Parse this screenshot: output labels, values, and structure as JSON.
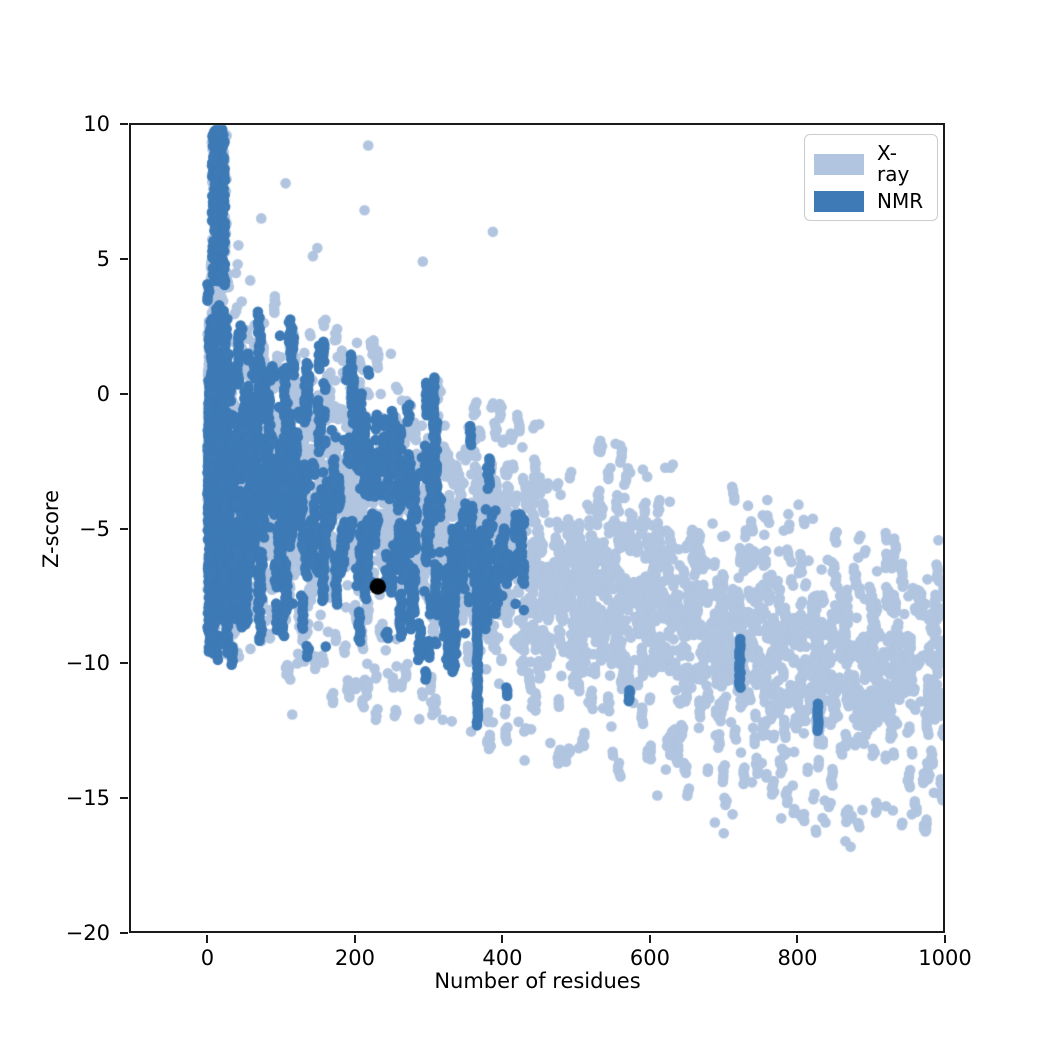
{
  "figure": {
    "background": "#ffffff"
  },
  "chart_data": {
    "type": "scatter",
    "title": "",
    "xlabel": "Number of residues",
    "ylabel": "Z-score",
    "xlim": [
      -105,
      1000
    ],
    "ylim": [
      -20,
      10
    ],
    "grid": false,
    "x_ticks": {
      "values": [
        0,
        200,
        400,
        600,
        800,
        1000
      ],
      "labels": [
        "0",
        "200",
        "400",
        "600",
        "800",
        "1000"
      ]
    },
    "y_ticks": {
      "values": [
        10,
        5,
        0,
        -5,
        -10,
        -15,
        -20
      ],
      "labels": [
        "10",
        "5",
        "0",
        "−5",
        "−10",
        "−15",
        "−20"
      ]
    },
    "legend": {
      "position": "upper right",
      "entries": [
        {
          "label": "X-ray",
          "color": "#b1c5e0"
        },
        {
          "label": "NMR",
          "color": "#3d7ab6"
        }
      ]
    },
    "highlight_point": {
      "x": 231,
      "y": -7.15,
      "color": "#000000",
      "radius_px": 8.2
    },
    "series": [
      {
        "name": "X-ray",
        "color": "#b1c5e0",
        "marker_radius_px": 5.3,
        "x_range": [
          2,
          1000
        ],
        "x_skew": 1.45,
        "n_points": 6800,
        "upper_envelope": [
          [
            0,
            5.2
          ],
          [
            50,
            4.3
          ],
          [
            100,
            3.6
          ],
          [
            150,
            2.9
          ],
          [
            200,
            2.3
          ],
          [
            300,
            1.0
          ],
          [
            400,
            -0.2
          ],
          [
            500,
            -1.3
          ],
          [
            600,
            -2.3
          ],
          [
            700,
            -3.2
          ],
          [
            800,
            -4.0
          ],
          [
            900,
            -4.7
          ],
          [
            1000,
            -5.3
          ]
        ],
        "lower_envelope": [
          [
            0,
            -9.2
          ],
          [
            50,
            -9.7
          ],
          [
            100,
            -10.4
          ],
          [
            150,
            -11.0
          ],
          [
            200,
            -11.6
          ],
          [
            300,
            -12.5
          ],
          [
            400,
            -13.1
          ],
          [
            500,
            -13.6
          ],
          [
            600,
            -14.1
          ],
          [
            700,
            -15.2
          ],
          [
            800,
            -16.1
          ],
          [
            900,
            -16.7
          ],
          [
            1000,
            -15.9
          ]
        ],
        "spike": {
          "x_range": [
            6,
            26
          ],
          "z_range": [
            3.5,
            9.7
          ],
          "n": 90
        },
        "high_outliers": [
          [
            218,
            9.2
          ],
          [
            106,
            7.8
          ],
          [
            213,
            6.8
          ],
          [
            73,
            6.5
          ],
          [
            387,
            6.0
          ],
          [
            42,
            5.5
          ],
          [
            149,
            5.4
          ],
          [
            143,
            5.1
          ],
          [
            41,
            4.8
          ],
          [
            292,
            4.9
          ],
          [
            58,
            4.2
          ]
        ],
        "low_outliers": [
          [
            700,
            -16.3
          ],
          [
            688,
            -15.9
          ],
          [
            712,
            -15.6
          ],
          [
            865,
            -16.6
          ],
          [
            872,
            -16.8
          ],
          [
            838,
            -15.9
          ],
          [
            920,
            -15.3
          ],
          [
            955,
            -15.6
          ],
          [
            985,
            -14.8
          ],
          [
            610,
            -14.9
          ],
          [
            560,
            -14.2
          ],
          [
            430,
            -13.6
          ],
          [
            115,
            -11.9
          ]
        ]
      },
      {
        "name": "NMR",
        "color": "#3d7ab6",
        "marker_radius_px": 5.3,
        "x_range": [
          2,
          430
        ],
        "x_skew": 2.0,
        "n_points": 3400,
        "upper_envelope": [
          [
            0,
            4.4
          ],
          [
            30,
            4.0
          ],
          [
            60,
            3.5
          ],
          [
            100,
            3.0
          ],
          [
            150,
            2.2
          ],
          [
            200,
            1.4
          ],
          [
            250,
            0.5
          ],
          [
            300,
            -0.5
          ],
          [
            350,
            -1.6
          ],
          [
            430,
            -3.2
          ]
        ],
        "lower_envelope": [
          [
            0,
            -9.3
          ],
          [
            30,
            -10.0
          ],
          [
            60,
            -8.8
          ],
          [
            100,
            -9.2
          ],
          [
            150,
            -9.6
          ],
          [
            200,
            -9.9
          ],
          [
            250,
            -9.4
          ],
          [
            300,
            -9.7
          ],
          [
            350,
            -10.2
          ],
          [
            430,
            -8.5
          ]
        ],
        "spike": {
          "x_range": [
            6,
            24
          ],
          "z_range": [
            4.0,
            9.8
          ],
          "n": 260
        },
        "outlier_streaks": [
          {
            "x": 366,
            "z_top": -7.2,
            "z_bottom": -12.3
          },
          {
            "x": 722,
            "z_top": -9.1,
            "z_bottom": -10.9
          },
          {
            "x": 828,
            "z_top": -11.5,
            "z_bottom": -12.5
          },
          {
            "x": 572,
            "z_top": -11.0,
            "z_bottom": -11.4
          },
          {
            "x": 406,
            "z_top": -10.9,
            "z_bottom": -11.2
          },
          {
            "x": 296,
            "z_top": -10.3,
            "z_bottom": -10.6
          },
          {
            "x": 297,
            "z_top": 0.4,
            "z_bottom": -0.8
          },
          {
            "x": 307,
            "z_top": 0.6,
            "z_bottom": -1.6
          },
          {
            "x": 357,
            "z_top": -1.2,
            "z_bottom": -1.9
          }
        ]
      }
    ]
  }
}
